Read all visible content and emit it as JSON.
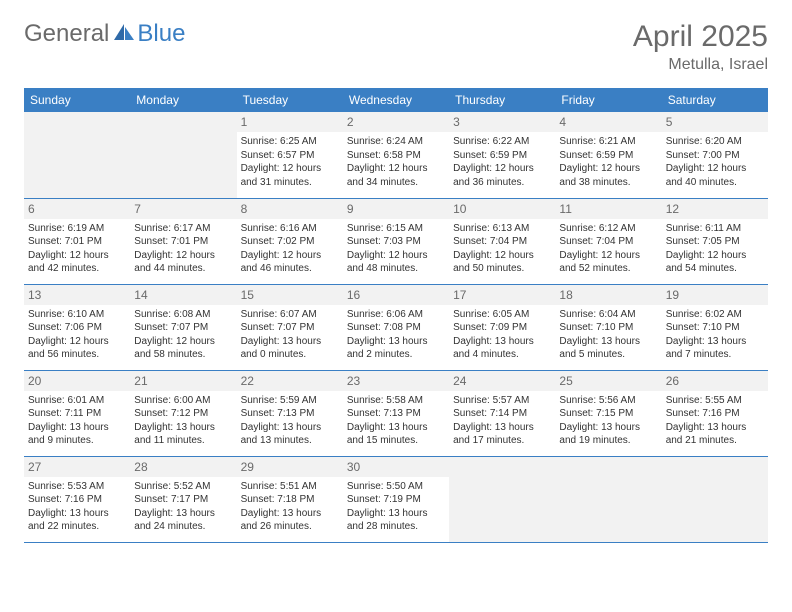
{
  "logo": {
    "part1": "General",
    "part2": "Blue"
  },
  "title": "April 2025",
  "location": "Metulla, Israel",
  "colors": {
    "header_bg": "#3a7fc4",
    "header_text": "#ffffff",
    "daynum_bg": "#f2f2f2",
    "daynum_text": "#6a6a6a",
    "border": "#3a7fc4",
    "title_text": "#6a6a6a"
  },
  "typography": {
    "title_fontsize": 30,
    "location_fontsize": 16,
    "header_fontsize": 12,
    "daynum_fontsize": 12,
    "cell_fontsize": 10
  },
  "weekdays": [
    "Sunday",
    "Monday",
    "Tuesday",
    "Wednesday",
    "Thursday",
    "Friday",
    "Saturday"
  ],
  "weeks": [
    [
      null,
      null,
      {
        "n": "1",
        "sr": "Sunrise: 6:25 AM",
        "ss": "Sunset: 6:57 PM",
        "d1": "Daylight: 12 hours",
        "d2": "and 31 minutes."
      },
      {
        "n": "2",
        "sr": "Sunrise: 6:24 AM",
        "ss": "Sunset: 6:58 PM",
        "d1": "Daylight: 12 hours",
        "d2": "and 34 minutes."
      },
      {
        "n": "3",
        "sr": "Sunrise: 6:22 AM",
        "ss": "Sunset: 6:59 PM",
        "d1": "Daylight: 12 hours",
        "d2": "and 36 minutes."
      },
      {
        "n": "4",
        "sr": "Sunrise: 6:21 AM",
        "ss": "Sunset: 6:59 PM",
        "d1": "Daylight: 12 hours",
        "d2": "and 38 minutes."
      },
      {
        "n": "5",
        "sr": "Sunrise: 6:20 AM",
        "ss": "Sunset: 7:00 PM",
        "d1": "Daylight: 12 hours",
        "d2": "and 40 minutes."
      }
    ],
    [
      {
        "n": "6",
        "sr": "Sunrise: 6:19 AM",
        "ss": "Sunset: 7:01 PM",
        "d1": "Daylight: 12 hours",
        "d2": "and 42 minutes."
      },
      {
        "n": "7",
        "sr": "Sunrise: 6:17 AM",
        "ss": "Sunset: 7:01 PM",
        "d1": "Daylight: 12 hours",
        "d2": "and 44 minutes."
      },
      {
        "n": "8",
        "sr": "Sunrise: 6:16 AM",
        "ss": "Sunset: 7:02 PM",
        "d1": "Daylight: 12 hours",
        "d2": "and 46 minutes."
      },
      {
        "n": "9",
        "sr": "Sunrise: 6:15 AM",
        "ss": "Sunset: 7:03 PM",
        "d1": "Daylight: 12 hours",
        "d2": "and 48 minutes."
      },
      {
        "n": "10",
        "sr": "Sunrise: 6:13 AM",
        "ss": "Sunset: 7:04 PM",
        "d1": "Daylight: 12 hours",
        "d2": "and 50 minutes."
      },
      {
        "n": "11",
        "sr": "Sunrise: 6:12 AM",
        "ss": "Sunset: 7:04 PM",
        "d1": "Daylight: 12 hours",
        "d2": "and 52 minutes."
      },
      {
        "n": "12",
        "sr": "Sunrise: 6:11 AM",
        "ss": "Sunset: 7:05 PM",
        "d1": "Daylight: 12 hours",
        "d2": "and 54 minutes."
      }
    ],
    [
      {
        "n": "13",
        "sr": "Sunrise: 6:10 AM",
        "ss": "Sunset: 7:06 PM",
        "d1": "Daylight: 12 hours",
        "d2": "and 56 minutes."
      },
      {
        "n": "14",
        "sr": "Sunrise: 6:08 AM",
        "ss": "Sunset: 7:07 PM",
        "d1": "Daylight: 12 hours",
        "d2": "and 58 minutes."
      },
      {
        "n": "15",
        "sr": "Sunrise: 6:07 AM",
        "ss": "Sunset: 7:07 PM",
        "d1": "Daylight: 13 hours",
        "d2": "and 0 minutes."
      },
      {
        "n": "16",
        "sr": "Sunrise: 6:06 AM",
        "ss": "Sunset: 7:08 PM",
        "d1": "Daylight: 13 hours",
        "d2": "and 2 minutes."
      },
      {
        "n": "17",
        "sr": "Sunrise: 6:05 AM",
        "ss": "Sunset: 7:09 PM",
        "d1": "Daylight: 13 hours",
        "d2": "and 4 minutes."
      },
      {
        "n": "18",
        "sr": "Sunrise: 6:04 AM",
        "ss": "Sunset: 7:10 PM",
        "d1": "Daylight: 13 hours",
        "d2": "and 5 minutes."
      },
      {
        "n": "19",
        "sr": "Sunrise: 6:02 AM",
        "ss": "Sunset: 7:10 PM",
        "d1": "Daylight: 13 hours",
        "d2": "and 7 minutes."
      }
    ],
    [
      {
        "n": "20",
        "sr": "Sunrise: 6:01 AM",
        "ss": "Sunset: 7:11 PM",
        "d1": "Daylight: 13 hours",
        "d2": "and 9 minutes."
      },
      {
        "n": "21",
        "sr": "Sunrise: 6:00 AM",
        "ss": "Sunset: 7:12 PM",
        "d1": "Daylight: 13 hours",
        "d2": "and 11 minutes."
      },
      {
        "n": "22",
        "sr": "Sunrise: 5:59 AM",
        "ss": "Sunset: 7:13 PM",
        "d1": "Daylight: 13 hours",
        "d2": "and 13 minutes."
      },
      {
        "n": "23",
        "sr": "Sunrise: 5:58 AM",
        "ss": "Sunset: 7:13 PM",
        "d1": "Daylight: 13 hours",
        "d2": "and 15 minutes."
      },
      {
        "n": "24",
        "sr": "Sunrise: 5:57 AM",
        "ss": "Sunset: 7:14 PM",
        "d1": "Daylight: 13 hours",
        "d2": "and 17 minutes."
      },
      {
        "n": "25",
        "sr": "Sunrise: 5:56 AM",
        "ss": "Sunset: 7:15 PM",
        "d1": "Daylight: 13 hours",
        "d2": "and 19 minutes."
      },
      {
        "n": "26",
        "sr": "Sunrise: 5:55 AM",
        "ss": "Sunset: 7:16 PM",
        "d1": "Daylight: 13 hours",
        "d2": "and 21 minutes."
      }
    ],
    [
      {
        "n": "27",
        "sr": "Sunrise: 5:53 AM",
        "ss": "Sunset: 7:16 PM",
        "d1": "Daylight: 13 hours",
        "d2": "and 22 minutes."
      },
      {
        "n": "28",
        "sr": "Sunrise: 5:52 AM",
        "ss": "Sunset: 7:17 PM",
        "d1": "Daylight: 13 hours",
        "d2": "and 24 minutes."
      },
      {
        "n": "29",
        "sr": "Sunrise: 5:51 AM",
        "ss": "Sunset: 7:18 PM",
        "d1": "Daylight: 13 hours",
        "d2": "and 26 minutes."
      },
      {
        "n": "30",
        "sr": "Sunrise: 5:50 AM",
        "ss": "Sunset: 7:19 PM",
        "d1": "Daylight: 13 hours",
        "d2": "and 28 minutes."
      },
      null,
      null,
      null
    ]
  ]
}
